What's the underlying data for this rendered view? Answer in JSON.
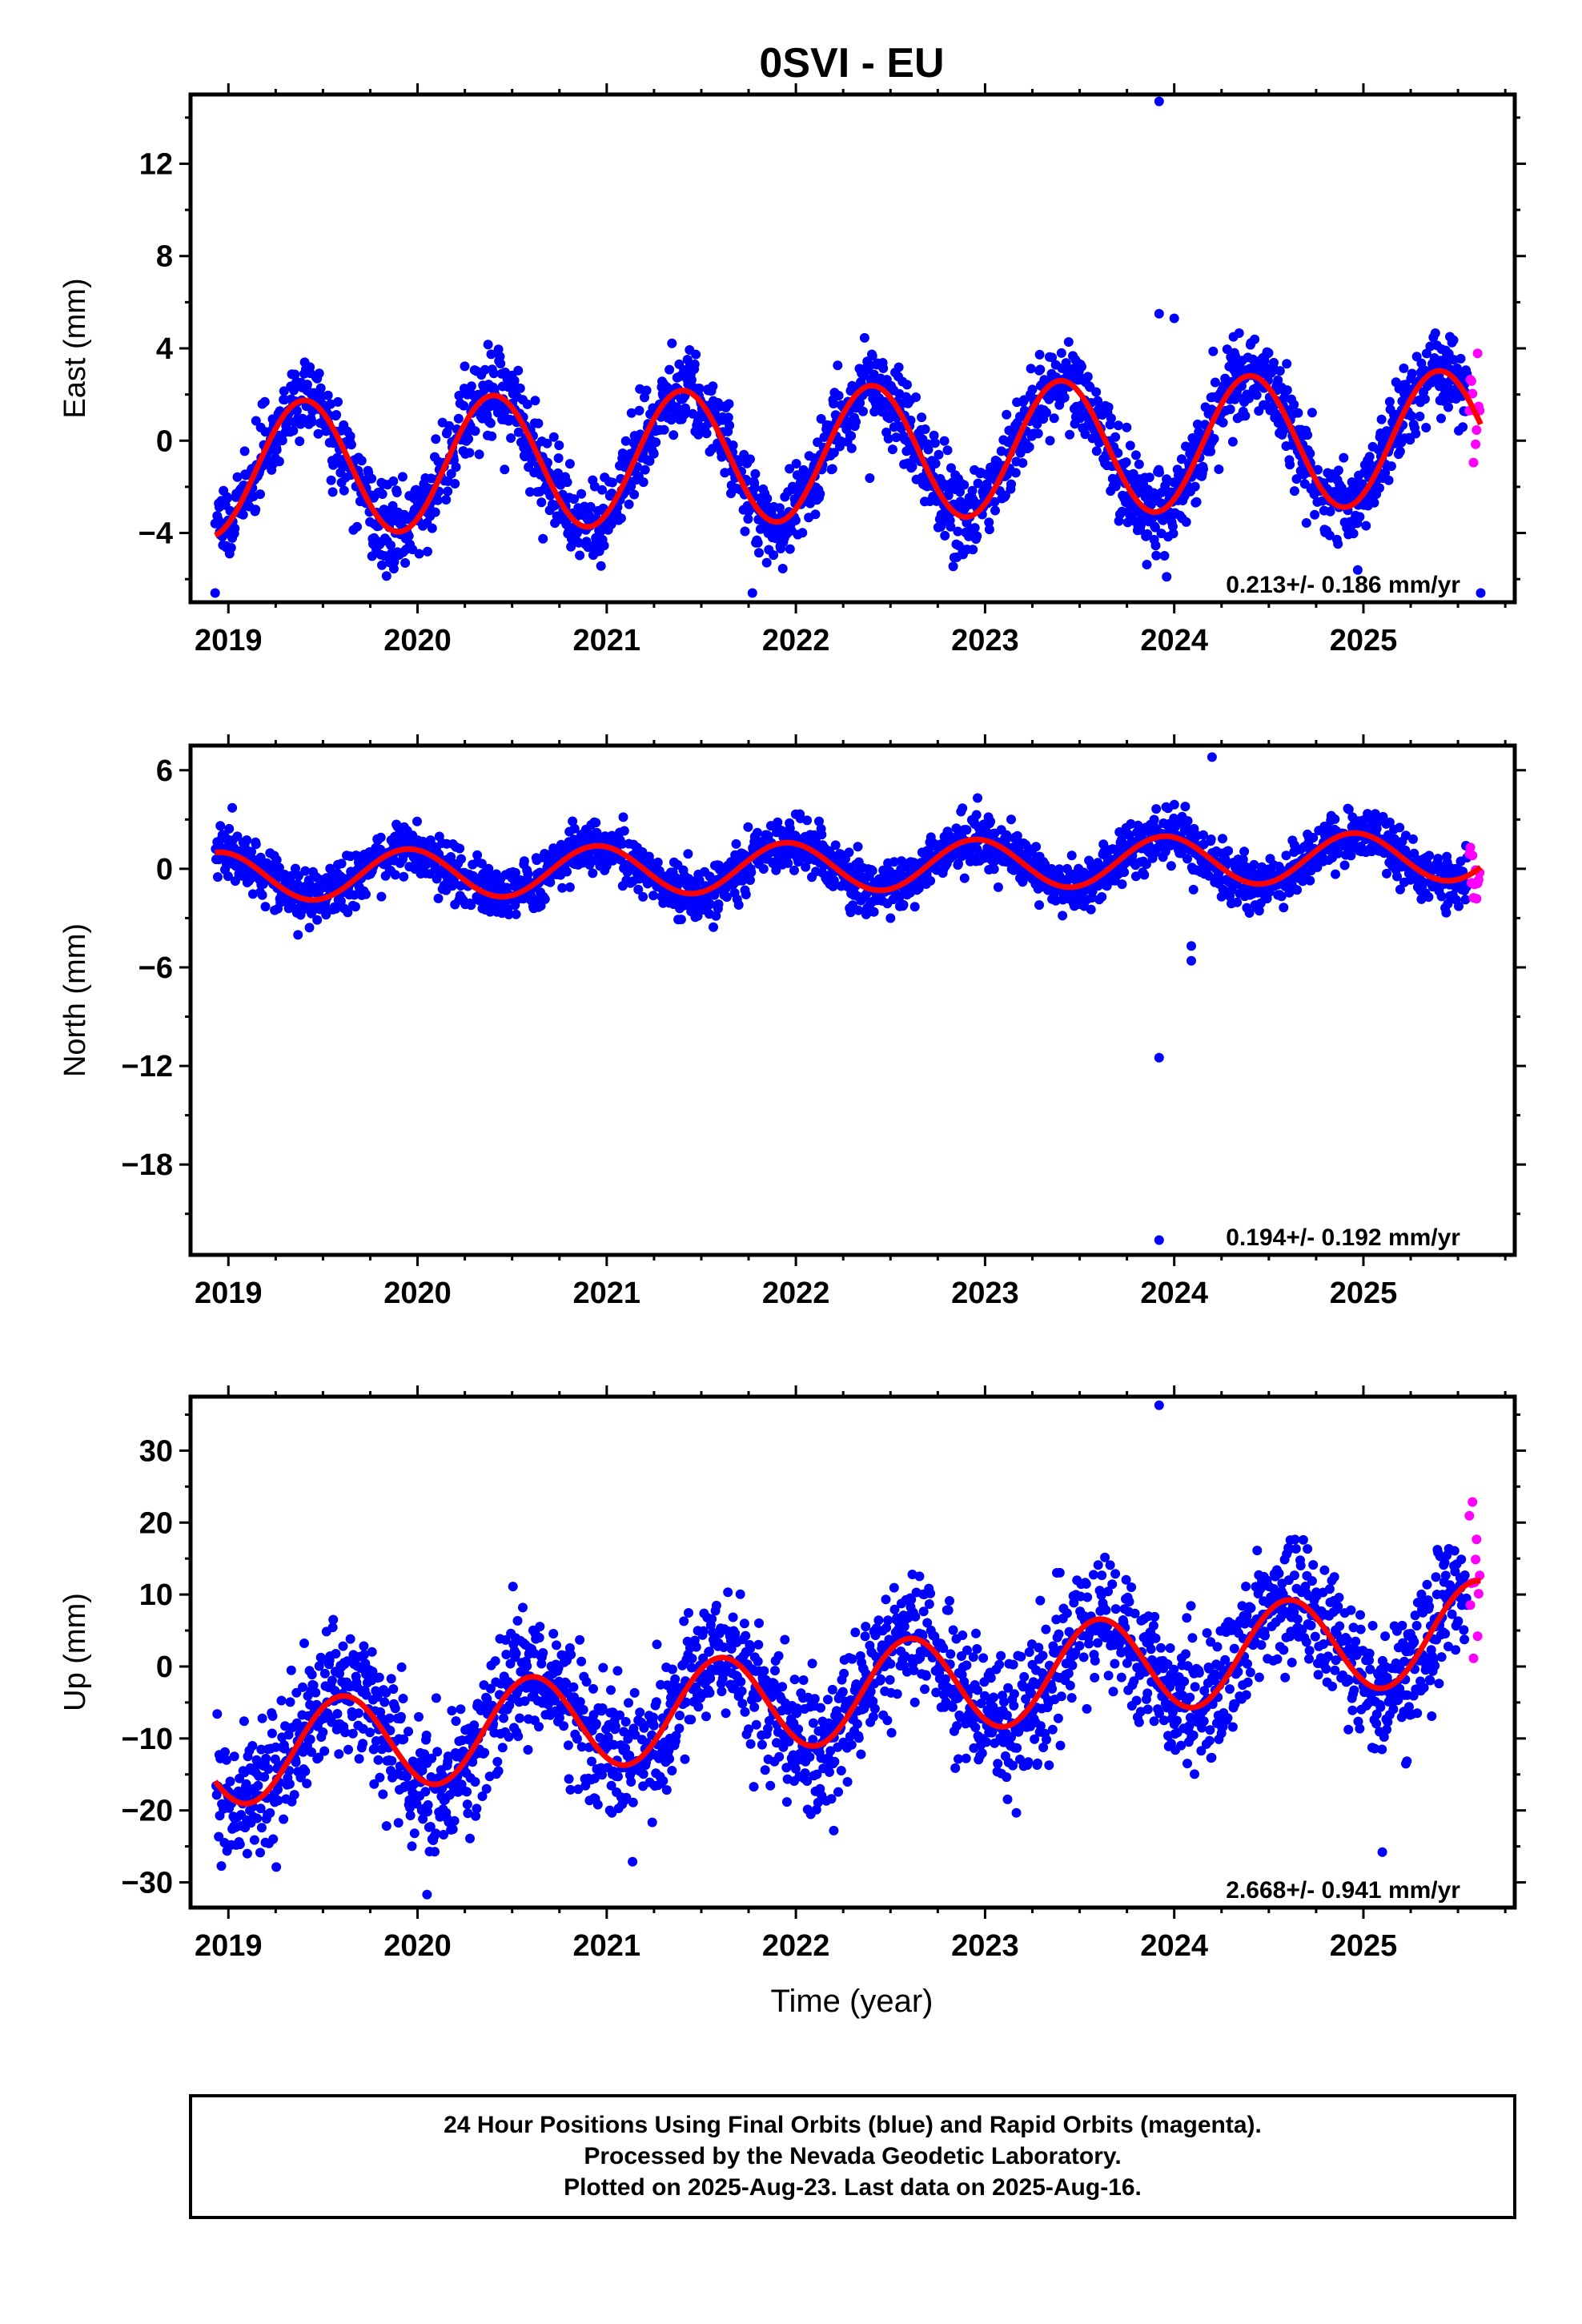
{
  "title": "0SVI - EU",
  "x_axis_label": "Time (year)",
  "colors": {
    "final": "#0000ff",
    "rapid": "#ff00ff",
    "model": "#ff0000",
    "frame": "#000000"
  },
  "footer": {
    "line1": "24 Hour Positions Using Final Orbits (blue) and Rapid Orbits (magenta).",
    "line2": "Processed by the Nevada Geodetic Laboratory.",
    "line3": "Plotted on 2025-Aug-23. Last data on 2025-Aug-16."
  },
  "chart_data": [
    {
      "type": "scatter",
      "component": "east",
      "ylabel": "East (mm)",
      "xlim": [
        2018.8,
        2025.8
      ],
      "ylim": [
        -7,
        15
      ],
      "yticks": [
        -4,
        0,
        4,
        8,
        12
      ],
      "xticks": [
        2019,
        2020,
        2021,
        2022,
        2023,
        2024,
        2025
      ],
      "grid": false,
      "rate_text": "0.213+/- 0.186 mm/yr",
      "model": {
        "rate": 0.213,
        "offset": -0.6,
        "annual_amp": 2.9,
        "peak_phase": 0.4,
        "t0": 2022.0
      },
      "final_orbits": {
        "start": 2018.93,
        "end": 2025.55,
        "noise": 0.9
      },
      "rapid_orbits": {
        "start": 2025.56,
        "end": 2025.62
      },
      "outliers": [
        [
          2023.92,
          14.7
        ],
        [
          2023.92,
          5.5
        ],
        [
          2024.0,
          5.3
        ],
        [
          2018.93,
          -6.6
        ],
        [
          2021.77,
          -6.6
        ],
        [
          2025.62,
          -6.6
        ],
        [
          2023.96,
          -5.9
        ],
        [
          2024.97,
          -5.6
        ]
      ]
    },
    {
      "type": "scatter",
      "component": "north",
      "ylabel": "North (mm)",
      "xlim": [
        2018.8,
        2025.8
      ],
      "ylim": [
        -23.5,
        7.5
      ],
      "yticks": [
        -18,
        -12,
        -6,
        0,
        6
      ],
      "xticks": [
        2019,
        2020,
        2021,
        2022,
        2023,
        2024,
        2025
      ],
      "grid": false,
      "rate_text": "0.194+/- 0.192 mm/yr",
      "model": {
        "rate": 0.194,
        "offset": 0.1,
        "annual_amp": 1.5,
        "peak_phase": 0.95,
        "t0": 2022.0
      },
      "final_orbits": {
        "start": 2018.93,
        "end": 2025.55,
        "noise": 0.8
      },
      "rapid_orbits": {
        "start": 2025.56,
        "end": 2025.62
      },
      "outliers": [
        [
          2023.92,
          -11.5
        ],
        [
          2023.92,
          -22.6
        ],
        [
          2024.09,
          -4.7
        ],
        [
          2024.09,
          -5.6
        ],
        [
          2024.2,
          6.8
        ]
      ]
    },
    {
      "type": "scatter",
      "component": "up",
      "ylabel": "Up (mm)",
      "xlim": [
        2018.8,
        2025.8
      ],
      "ylim": [
        -33.5,
        37.5
      ],
      "yticks": [
        -30,
        -20,
        -10,
        0,
        10,
        20,
        30
      ],
      "xticks": [
        2019,
        2020,
        2021,
        2022,
        2023,
        2024,
        2025
      ],
      "grid": false,
      "rate_text": "2.668+/- 0.941 mm/yr",
      "model": {
        "rate": 2.668,
        "offset": -4.5,
        "annual_amp": 6.8,
        "peak_phase": 0.6,
        "t0": 2022.0
      },
      "final_orbits": {
        "start": 2018.93,
        "end": 2025.55,
        "noise": 4.5
      },
      "rapid_orbits": {
        "start": 2025.56,
        "end": 2025.62
      },
      "outliers": [
        [
          2023.92,
          36.3
        ],
        [
          2020.05,
          -31.7
        ],
        [
          2025.1,
          -25.8
        ],
        [
          2022.2,
          -22.8
        ],
        [
          2019.1,
          -26.0
        ]
      ]
    }
  ]
}
